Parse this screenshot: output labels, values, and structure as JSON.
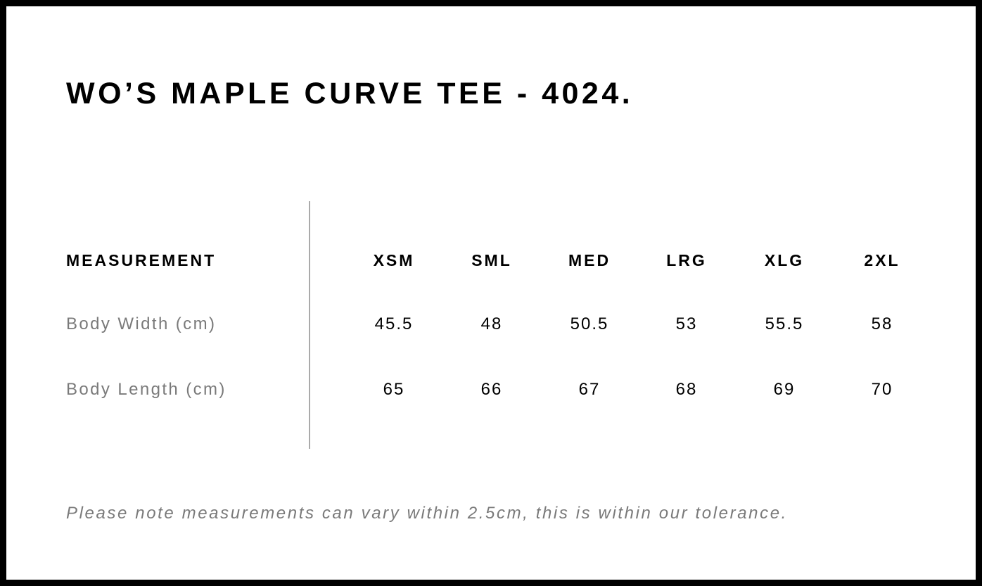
{
  "title": "WO’S MAPLE CURVE TEE - 4024.",
  "table": {
    "header_label": "MEASUREMENT",
    "sizes": [
      "XSM",
      "SML",
      "MED",
      "LRG",
      "XLG",
      "2XL"
    ],
    "rows": [
      {
        "label": "Body Width (cm)",
        "values": [
          "45.5",
          "48",
          "50.5",
          "53",
          "55.5",
          "58"
        ]
      },
      {
        "label": "Body Length (cm)",
        "values": [
          "65",
          "66",
          "67",
          "68",
          "69",
          "70"
        ]
      }
    ]
  },
  "note": "Please note measurements can vary within 2.5cm, this is within our tolerance."
}
